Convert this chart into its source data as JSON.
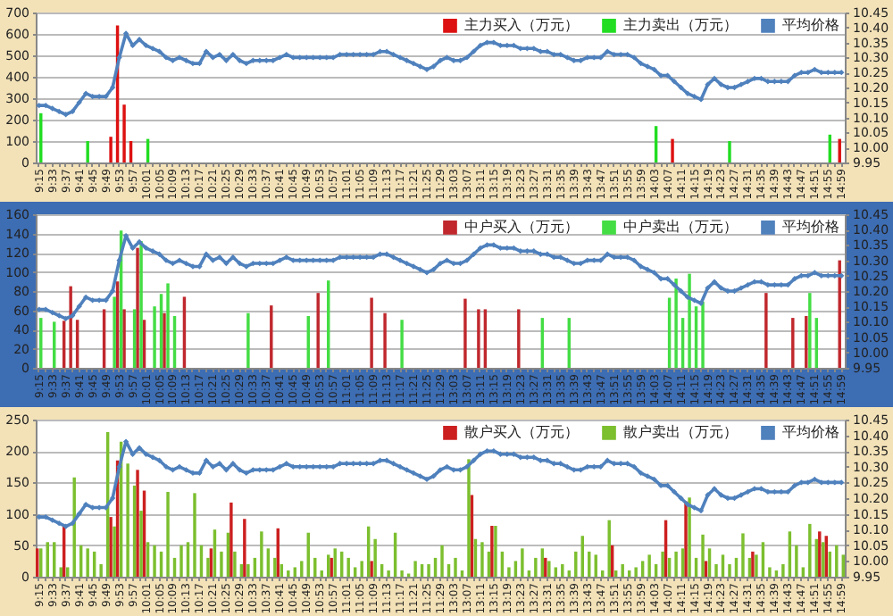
{
  "chart_data": [
    {
      "type": "bar",
      "categories": [
        "9:15",
        null,
        "9:33",
        null,
        "9:37",
        null,
        "9:41",
        null,
        "9:45",
        null,
        "9:49",
        null,
        "9:53",
        null,
        "9:57",
        null,
        "10:01",
        null,
        "10:05",
        null,
        "10:09",
        null,
        "10:13",
        null,
        "10:17",
        null,
        "10:21",
        null,
        "10:25",
        null,
        "10:29",
        null,
        "10:33",
        null,
        "10:37",
        null,
        "10:41",
        null,
        "10:45",
        null,
        "10:49",
        null,
        "10:53",
        null,
        "10:57",
        null,
        "11:01",
        null,
        "11:05",
        null,
        "11:09",
        null,
        "11:13",
        null,
        "11:17",
        null,
        "11:21",
        null,
        "11:25",
        null,
        "11:29",
        null,
        "13:03",
        null,
        "13:07",
        null,
        "13:11",
        null,
        "13:15",
        null,
        "13:19",
        null,
        "13:23",
        null,
        "13:27",
        null,
        "13:31",
        null,
        "13:35",
        null,
        "13:39",
        null,
        "13:43",
        null,
        "13:47",
        null,
        "13:51",
        null,
        "13:55",
        null,
        "13:59",
        null,
        "14:03",
        null,
        "14:07",
        null,
        "14:11",
        null,
        "14:15",
        null,
        "14:19",
        null,
        "14:23",
        null,
        "14:27",
        null,
        "14:31",
        null,
        "14:35",
        null,
        "14:39",
        null,
        "14:43",
        null,
        "14:47",
        null,
        "14:51",
        null,
        "14:55",
        null,
        "14:59"
      ],
      "series": [
        {
          "name": "主力买入（万元）",
          "color": "#dd1111",
          "values": [
            null,
            null,
            null,
            null,
            null,
            null,
            null,
            null,
            null,
            null,
            null,
            120,
            640,
            270,
            100,
            null,
            null,
            null,
            null,
            null,
            null,
            null,
            null,
            null,
            null,
            null,
            null,
            null,
            null,
            null,
            null,
            null,
            null,
            null,
            null,
            null,
            null,
            null,
            null,
            null,
            null,
            null,
            null,
            null,
            null,
            null,
            null,
            null,
            null,
            null,
            null,
            null,
            null,
            null,
            null,
            null,
            null,
            null,
            null,
            null,
            null,
            null,
            null,
            null,
            null,
            null,
            null,
            null,
            null,
            null,
            null,
            null,
            null,
            null,
            null,
            null,
            null,
            null,
            null,
            null,
            null,
            null,
            null,
            null,
            null,
            null,
            null,
            null,
            null,
            null,
            null,
            null,
            null,
            null,
            null,
            110,
            null,
            null,
            null,
            null,
            null,
            null,
            null,
            null,
            null,
            null,
            null,
            null,
            null,
            null,
            null,
            null,
            null,
            null,
            null,
            null,
            null,
            null,
            null,
            null,
            110
          ]
        },
        {
          "name": "主力卖出（万元）",
          "color": "#22dd22",
          "values": [
            230,
            null,
            null,
            null,
            null,
            null,
            null,
            100,
            null,
            null,
            null,
            null,
            null,
            null,
            null,
            null,
            110,
            null,
            null,
            null,
            null,
            null,
            null,
            null,
            null,
            null,
            null,
            null,
            null,
            null,
            null,
            null,
            null,
            null,
            null,
            null,
            null,
            null,
            null,
            null,
            null,
            null,
            null,
            null,
            null,
            null,
            null,
            null,
            null,
            null,
            null,
            null,
            null,
            null,
            null,
            null,
            null,
            null,
            null,
            null,
            null,
            null,
            null,
            null,
            null,
            null,
            null,
            null,
            null,
            null,
            null,
            null,
            null,
            null,
            null,
            null,
            null,
            null,
            null,
            null,
            null,
            null,
            null,
            null,
            null,
            null,
            null,
            null,
            null,
            null,
            null,
            null,
            170,
            null,
            null,
            null,
            null,
            null,
            null,
            null,
            null,
            null,
            null,
            100,
            null,
            null,
            null,
            null,
            null,
            null,
            null,
            null,
            null,
            null,
            null,
            null,
            null,
            null,
            130,
            null,
            null
          ]
        },
        {
          "name": "平均价格",
          "color": "#4f81bd",
          "type": "line",
          "axis": "y2",
          "values": [
            10.14,
            10.14,
            10.13,
            10.12,
            10.11,
            10.12,
            10.15,
            10.18,
            10.17,
            10.17,
            10.17,
            10.2,
            10.3,
            10.38,
            10.34,
            10.36,
            10.34,
            10.33,
            10.32,
            10.3,
            10.29,
            10.3,
            10.29,
            10.28,
            10.28,
            10.32,
            10.3,
            10.31,
            10.29,
            10.31,
            10.29,
            10.28,
            10.29,
            10.29,
            10.29,
            10.29,
            10.3,
            10.31,
            10.3,
            10.3,
            10.3,
            10.3,
            10.3,
            10.3,
            10.3,
            10.31,
            10.31,
            10.31,
            10.31,
            10.31,
            10.31,
            10.32,
            10.32,
            10.31,
            10.3,
            10.29,
            10.28,
            10.27,
            10.26,
            10.27,
            10.29,
            10.3,
            10.29,
            10.29,
            10.3,
            10.32,
            10.34,
            10.35,
            10.35,
            10.34,
            10.34,
            10.34,
            10.33,
            10.33,
            10.33,
            10.32,
            10.32,
            10.31,
            10.31,
            10.3,
            10.29,
            10.29,
            10.3,
            10.3,
            10.3,
            10.32,
            10.31,
            10.31,
            10.31,
            10.3,
            10.28,
            10.27,
            10.26,
            10.24,
            10.24,
            10.22,
            10.2,
            10.18,
            10.17,
            10.16,
            10.21,
            10.23,
            10.21,
            10.2,
            10.2,
            10.21,
            10.22,
            10.23,
            10.23,
            10.22,
            10.22,
            10.22,
            10.22,
            10.24,
            10.25,
            10.25,
            10.26,
            10.25,
            10.25,
            10.25,
            10.25
          ]
        }
      ],
      "ylim": [
        0,
        700
      ],
      "yticks": [
        0,
        100,
        200,
        300,
        400,
        500,
        600,
        700
      ],
      "y2lim": [
        9.95,
        10.45
      ],
      "y2ticks": [
        {
          "value": 9.95,
          "label": "9.95"
        },
        {
          "value": 10,
          "label": "10.00"
        },
        {
          "value": 10.05,
          "label": "10.05"
        },
        {
          "value": 10.1,
          "label": "10.10"
        },
        {
          "value": 10.15,
          "label": "10.15"
        },
        {
          "value": 10.2,
          "label": "10.20"
        },
        {
          "value": 10.25,
          "label": "10.25"
        },
        {
          "value": 10.3,
          "label": "10.30"
        },
        {
          "value": 10.35,
          "label": "10.35"
        },
        {
          "value": 10.4,
          "label": "10.40"
        },
        {
          "value": 10.45,
          "label": "10.45"
        }
      ],
      "grid": "y",
      "legend": "top right",
      "marker": "diamond"
    },
    {
      "type": "bar",
      "categories": [
        "9:15",
        null,
        "9:33",
        null,
        "9:37",
        null,
        "9:41",
        null,
        "9:45",
        null,
        "9:49",
        null,
        "9:53",
        null,
        "9:57",
        null,
        "10:01",
        null,
        "10:05",
        null,
        "10:09",
        null,
        "10:13",
        null,
        "10:17",
        null,
        "10:21",
        null,
        "10:25",
        null,
        "10:29",
        null,
        "10:33",
        null,
        "10:37",
        null,
        "10:41",
        null,
        "10:45",
        null,
        "10:49",
        null,
        "10:53",
        null,
        "10:57",
        null,
        "11:01",
        null,
        "11:05",
        null,
        "11:09",
        null,
        "11:13",
        null,
        "11:17",
        null,
        "11:21",
        null,
        "11:25",
        null,
        "11:29",
        null,
        "13:03",
        null,
        "13:07",
        null,
        "13:11",
        null,
        "13:15",
        null,
        "13:19",
        null,
        "13:23",
        null,
        "13:27",
        null,
        "13:31",
        null,
        "13:35",
        null,
        "13:39",
        null,
        "13:43",
        null,
        "13:47",
        null,
        "13:51",
        null,
        "13:55",
        null,
        "13:59",
        null,
        "14:03",
        null,
        "14:07",
        null,
        "14:11",
        null,
        "14:15",
        null,
        "14:19",
        null,
        "14:23",
        null,
        "14:27",
        null,
        "14:31",
        null,
        "14:35",
        null,
        "14:39",
        null,
        "14:43",
        null,
        "14:47",
        null,
        "14:51",
        null,
        "14:55",
        null,
        "14:59"
      ],
      "series": [
        {
          "name": "中户买入（万元）",
          "color": "#c0282d",
          "values": [
            null,
            null,
            null,
            null,
            49,
            85,
            50,
            null,
            null,
            null,
            61,
            null,
            90,
            61,
            null,
            125,
            50,
            null,
            null,
            57,
            null,
            null,
            74,
            null,
            null,
            null,
            null,
            null,
            null,
            null,
            null,
            null,
            null,
            null,
            null,
            65,
            null,
            null,
            null,
            null,
            null,
            null,
            78,
            null,
            null,
            null,
            null,
            null,
            null,
            null,
            73,
            null,
            57,
            null,
            null,
            null,
            null,
            null,
            null,
            null,
            null,
            null,
            null,
            null,
            72,
            null,
            61,
            61,
            null,
            null,
            null,
            null,
            61,
            null,
            null,
            null,
            null,
            null,
            null,
            null,
            null,
            null,
            null,
            null,
            null,
            null,
            null,
            null,
            null,
            null,
            null,
            null,
            null,
            null,
            null,
            null,
            null,
            null,
            null,
            null,
            null,
            null,
            null,
            null,
            null,
            null,
            null,
            null,
            null,
            78,
            null,
            null,
            null,
            52,
            null,
            54,
            null,
            null,
            null,
            null,
            112
          ]
        },
        {
          "name": "中户卖出（万元）",
          "color": "#44dd44",
          "values": [
            52,
            null,
            48,
            null,
            null,
            null,
            null,
            null,
            null,
            null,
            null,
            74,
            143,
            null,
            61,
            132,
            null,
            64,
            77,
            88,
            54,
            null,
            null,
            null,
            null,
            null,
            null,
            null,
            null,
            null,
            null,
            57,
            null,
            null,
            null,
            null,
            null,
            null,
            null,
            null,
            54,
            null,
            null,
            91,
            null,
            null,
            null,
            null,
            null,
            null,
            null,
            null,
            null,
            null,
            50,
            null,
            null,
            null,
            null,
            null,
            null,
            null,
            null,
            null,
            null,
            null,
            null,
            null,
            null,
            null,
            null,
            null,
            null,
            null,
            null,
            52,
            null,
            null,
            null,
            52,
            null,
            null,
            null,
            null,
            null,
            null,
            null,
            null,
            null,
            null,
            null,
            null,
            null,
            null,
            73,
            93,
            52,
            98,
            64,
            69,
            null,
            null,
            null,
            null,
            null,
            null,
            null,
            null,
            null,
            null,
            null,
            null,
            null,
            null,
            null,
            78,
            52,
            null,
            null,
            null,
            null
          ]
        },
        {
          "name": "平均价格",
          "color": "#4f81bd",
          "type": "line",
          "axis": "y2",
          "values": [
            10.14,
            10.14,
            10.13,
            10.12,
            10.11,
            10.12,
            10.15,
            10.18,
            10.17,
            10.17,
            10.17,
            10.2,
            10.3,
            10.38,
            10.34,
            10.36,
            10.34,
            10.33,
            10.32,
            10.3,
            10.29,
            10.3,
            10.29,
            10.28,
            10.28,
            10.32,
            10.3,
            10.31,
            10.29,
            10.31,
            10.29,
            10.28,
            10.29,
            10.29,
            10.29,
            10.29,
            10.3,
            10.31,
            10.3,
            10.3,
            10.3,
            10.3,
            10.3,
            10.3,
            10.3,
            10.31,
            10.31,
            10.31,
            10.31,
            10.31,
            10.31,
            10.32,
            10.32,
            10.31,
            10.3,
            10.29,
            10.28,
            10.27,
            10.26,
            10.27,
            10.29,
            10.3,
            10.29,
            10.29,
            10.3,
            10.32,
            10.34,
            10.35,
            10.35,
            10.34,
            10.34,
            10.34,
            10.33,
            10.33,
            10.33,
            10.32,
            10.32,
            10.31,
            10.31,
            10.3,
            10.29,
            10.29,
            10.3,
            10.3,
            10.3,
            10.32,
            10.31,
            10.31,
            10.31,
            10.3,
            10.28,
            10.27,
            10.26,
            10.24,
            10.24,
            10.22,
            10.2,
            10.18,
            10.17,
            10.16,
            10.21,
            10.23,
            10.21,
            10.2,
            10.2,
            10.21,
            10.22,
            10.23,
            10.23,
            10.22,
            10.22,
            10.22,
            10.22,
            10.24,
            10.25,
            10.25,
            10.26,
            10.25,
            10.25,
            10.25,
            10.25
          ]
        }
      ],
      "ylim": [
        0,
        160
      ],
      "yticks": [
        0,
        20,
        40,
        60,
        80,
        100,
        120,
        140,
        160
      ],
      "y2lim": [
        9.95,
        10.45
      ],
      "y2ticks": [
        {
          "value": 9.95,
          "label": "9.95"
        },
        {
          "value": 10,
          "label": "10.00"
        },
        {
          "value": 10.05,
          "label": "10.05"
        },
        {
          "value": 10.1,
          "label": "10.10"
        },
        {
          "value": 10.15,
          "label": "10.15"
        },
        {
          "value": 10.2,
          "label": "10.20"
        },
        {
          "value": 10.25,
          "label": "10.25"
        },
        {
          "value": 10.3,
          "label": "10.30"
        },
        {
          "value": 10.35,
          "label": "10.35"
        },
        {
          "value": 10.4,
          "label": "10.40"
        },
        {
          "value": 10.45,
          "label": "10.45"
        }
      ],
      "grid": "y",
      "legend": "top right",
      "marker": "diamond"
    },
    {
      "type": "bar",
      "categories": [
        "9:15",
        null,
        "9:33",
        null,
        "9:37",
        null,
        "9:41",
        null,
        "9:45",
        null,
        "9:49",
        null,
        "9:53",
        null,
        "9:57",
        null,
        "10:01",
        null,
        "10:05",
        null,
        "10:09",
        null,
        "10:13",
        null,
        "10:17",
        null,
        "10:21",
        null,
        "10:25",
        null,
        "10:29",
        null,
        "10:33",
        null,
        "10:37",
        null,
        "10:41",
        null,
        "10:45",
        null,
        "10:49",
        null,
        "10:53",
        null,
        "10:57",
        null,
        "11:01",
        null,
        "11:05",
        null,
        "11:09",
        null,
        "11:13",
        null,
        "11:17",
        null,
        "11:21",
        null,
        "11:25",
        null,
        "11:29",
        null,
        "13:03",
        null,
        "13:07",
        null,
        "13:11",
        null,
        "13:15",
        null,
        "13:19",
        null,
        "13:23",
        null,
        "13:27",
        null,
        "13:31",
        null,
        "13:35",
        null,
        "13:39",
        null,
        "13:43",
        null,
        "13:47",
        null,
        "13:51",
        null,
        "13:55",
        null,
        "13:59",
        null,
        "14:03",
        null,
        "14:07",
        null,
        "14:11",
        null,
        "14:15",
        null,
        "14:19",
        null,
        "14:23",
        null,
        "14:27",
        null,
        "14:31",
        null,
        "14:35",
        null,
        "14:39",
        null,
        "14:43",
        null,
        "14:47",
        null,
        "14:51",
        null,
        "14:55",
        null,
        "14:59"
      ],
      "series": [
        {
          "name": "散户买入（万元）",
          "color": "#cc2020",
          "values": [
            45,
            null,
            null,
            null,
            81,
            null,
            null,
            null,
            null,
            null,
            null,
            95,
            185,
            null,
            null,
            170,
            137,
            null,
            null,
            null,
            null,
            null,
            null,
            null,
            null,
            null,
            45,
            null,
            null,
            118,
            null,
            92,
            null,
            null,
            null,
            null,
            77,
            null,
            null,
            null,
            null,
            null,
            null,
            null,
            30,
            null,
            null,
            null,
            null,
            null,
            25,
            null,
            null,
            null,
            null,
            null,
            null,
            null,
            null,
            null,
            null,
            null,
            null,
            null,
            null,
            130,
            null,
            null,
            81,
            null,
            null,
            null,
            null,
            null,
            null,
            null,
            30,
            null,
            null,
            null,
            null,
            null,
            null,
            null,
            null,
            null,
            50,
            null,
            null,
            null,
            null,
            null,
            null,
            null,
            90,
            null,
            null,
            120,
            null,
            null,
            25,
            null,
            null,
            null,
            null,
            null,
            null,
            40,
            null,
            null,
            null,
            null,
            null,
            null,
            null,
            null,
            null,
            72,
            65,
            null,
            null
          ]
        },
        {
          "name": "散户卖出（万元）",
          "color": "#7cbf2f",
          "values": [
            45,
            55,
            55,
            15,
            15,
            158,
            50,
            45,
            40,
            20,
            230,
            80,
            215,
            180,
            145,
            105,
            55,
            50,
            40,
            135,
            30,
            50,
            55,
            133,
            50,
            30,
            75,
            40,
            70,
            40,
            20,
            20,
            30,
            72,
            45,
            30,
            20,
            10,
            15,
            25,
            70,
            30,
            10,
            35,
            45,
            40,
            30,
            15,
            25,
            80,
            60,
            20,
            10,
            70,
            10,
            5,
            25,
            20,
            20,
            30,
            50,
            20,
            30,
            10,
            187,
            60,
            55,
            40,
            81,
            40,
            15,
            25,
            45,
            10,
            30,
            45,
            25,
            15,
            20,
            10,
            40,
            65,
            40,
            35,
            10,
            90,
            10,
            20,
            10,
            15,
            25,
            35,
            20,
            40,
            30,
            40,
            45,
            126,
            30,
            67,
            45,
            20,
            35,
            20,
            30,
            69,
            30,
            35,
            55,
            15,
            10,
            20,
            72,
            50,
            15,
            84,
            60,
            55,
            40,
            50,
            35
          ]
        },
        {
          "name": "平均价格",
          "color": "#4f81bd",
          "type": "line",
          "axis": "y2",
          "values": [
            10.14,
            10.14,
            10.13,
            10.12,
            10.11,
            10.12,
            10.15,
            10.18,
            10.17,
            10.17,
            10.17,
            10.2,
            10.3,
            10.38,
            10.34,
            10.36,
            10.34,
            10.33,
            10.32,
            10.3,
            10.29,
            10.3,
            10.29,
            10.28,
            10.28,
            10.32,
            10.3,
            10.31,
            10.29,
            10.31,
            10.29,
            10.28,
            10.29,
            10.29,
            10.29,
            10.29,
            10.3,
            10.31,
            10.3,
            10.3,
            10.3,
            10.3,
            10.3,
            10.3,
            10.3,
            10.31,
            10.31,
            10.31,
            10.31,
            10.31,
            10.31,
            10.32,
            10.32,
            10.31,
            10.3,
            10.29,
            10.28,
            10.27,
            10.26,
            10.27,
            10.29,
            10.3,
            10.29,
            10.29,
            10.3,
            10.32,
            10.34,
            10.35,
            10.35,
            10.34,
            10.34,
            10.34,
            10.33,
            10.33,
            10.33,
            10.32,
            10.32,
            10.31,
            10.31,
            10.3,
            10.29,
            10.29,
            10.3,
            10.3,
            10.3,
            10.32,
            10.31,
            10.31,
            10.31,
            10.3,
            10.28,
            10.27,
            10.26,
            10.24,
            10.24,
            10.22,
            10.2,
            10.18,
            10.17,
            10.16,
            10.21,
            10.23,
            10.21,
            10.2,
            10.2,
            10.21,
            10.22,
            10.23,
            10.23,
            10.22,
            10.22,
            10.22,
            10.22,
            10.24,
            10.25,
            10.25,
            10.26,
            10.25,
            10.25,
            10.25,
            10.25
          ]
        }
      ],
      "ylim": [
        0,
        250
      ],
      "yticks": [
        0,
        50,
        100,
        150,
        200,
        250
      ],
      "y2lim": [
        9.95,
        10.45
      ],
      "y2ticks": [
        {
          "value": 9.95,
          "label": "9.95"
        },
        {
          "value": 10,
          "label": "10.00"
        },
        {
          "value": 10.05,
          "label": "10.05"
        },
        {
          "value": 10.1,
          "label": "10.10"
        },
        {
          "value": 10.15,
          "label": "10.15"
        },
        {
          "value": 10.2,
          "label": "10.20"
        },
        {
          "value": 10.25,
          "label": "10.25"
        },
        {
          "value": 10.3,
          "label": "10.30"
        },
        {
          "value": 10.35,
          "label": "10.35"
        },
        {
          "value": 10.4,
          "label": "10.40"
        },
        {
          "value": 10.45,
          "label": "10.45"
        }
      ],
      "grid": "y",
      "legend": "top right",
      "marker": "diamond"
    }
  ]
}
